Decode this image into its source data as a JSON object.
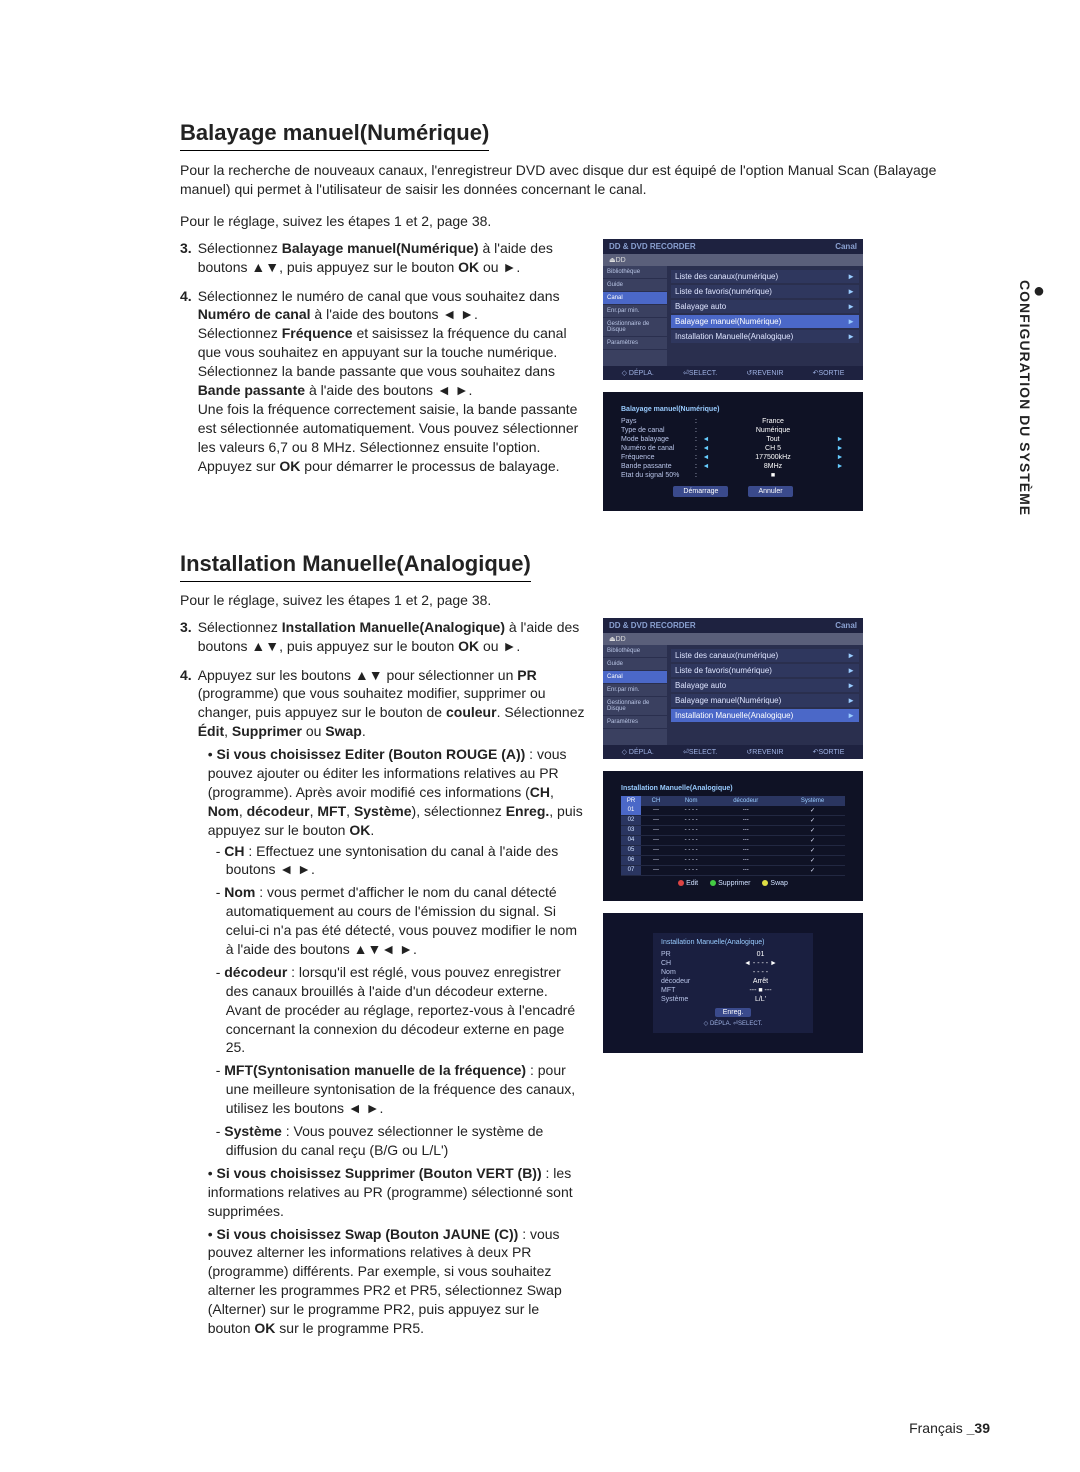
{
  "side_tab": "CONFIGURATION DU SYSTÈME",
  "section1": {
    "title": "Balayage manuel(Numérique)",
    "intro": "Pour la recherche de nouveaux canaux, l'enregistreur DVD avec disque dur est équipé de l'option Manual Scan (Balayage manuel) qui permet à l'utilisateur de saisir les données concernant le canal.",
    "step0": "Pour le réglage, suivez les étapes 1 et 2, page 38.",
    "step3": {
      "num": "3.",
      "text_a": "Sélectionnez ",
      "bold_a": "Balayage manuel(Numérique)",
      "text_b": " à l'aide des boutons ▲▼, puis appuyez sur le bouton ",
      "bold_b": "OK",
      "text_c": " ou ►."
    },
    "step4": {
      "num": "4.",
      "l1": "Sélectionnez le numéro de canal que vous souhaitez dans ",
      "l1b": "Numéro de canal",
      "l1c": " à l'aide des boutons ◄ ►.",
      "l2a": "Sélectionnez ",
      "l2b": "Fréquence",
      "l2c": " et saisissez la fréquence du canal que vous souhaitez en appuyant sur la touche numérique.",
      "l3a": "Sélectionnez la bande passante que vous souhaitez dans ",
      "l3b": "Bande passante",
      "l3c": " à l'aide des boutons ◄ ►.",
      "l4": "Une fois la fréquence correctement saisie, la bande passante est sélectionnée automatiquement. Vous pouvez sélectionner les valeurs 6,7 ou 8 MHz. Sélectionnez ensuite l'option. Appuyez sur ",
      "l4b": "OK",
      "l4c": " pour démarrer le processus de balayage."
    }
  },
  "section2": {
    "title": "Installation Manuelle(Analogique)",
    "step0": "Pour le réglage, suivez les étapes 1 et 2, page 38.",
    "step3": {
      "num": "3.",
      "a": "Sélectionnez ",
      "b": "Installation Manuelle(Analogique)",
      "c": " à l'aide des boutons ▲▼, puis appuyez sur le bouton ",
      "d": "OK",
      "e": " ou ►."
    },
    "step4": {
      "num": "4.",
      "p1a": "Appuyez sur les boutons ▲▼ pour sélectionner un ",
      "p1b": "PR",
      "p1c": " (programme) que vous souhaitez modifier, supprimer ou changer, puis appuyez sur le bouton de ",
      "p1d": "couleur",
      "p1e": ". Sélectionnez ",
      "p1f": "Édit",
      "p1g": ", ",
      "p1h": "Supprimer",
      "p1i": " ou ",
      "p1j": "Swap",
      "p1k": ".",
      "bul1a": "Si vous choisissez Editer (Bouton ROUGE (A))",
      "bul1b": " : vous pouvez ajouter ou éditer les informations relatives au PR (programme). Après avoir modifié ces informations (",
      "bul1c": "CH",
      "bul1d": ", ",
      "bul1e": "Nom",
      "bul1f": ", ",
      "bul1g": "décodeur",
      "bul1h": ", ",
      "bul1i": "MFT",
      "bul1j": ", ",
      "bul1k": "Système",
      "bul1l": "), sélectionnez ",
      "bul1m": "Enreg.",
      "bul1n": ", puis appuyez sur le bouton ",
      "bul1o": "OK",
      "bul1p": ".",
      "d_ch_a": "CH",
      "d_ch_b": " : Effectuez une syntonisation du canal à l'aide des boutons ◄ ►.",
      "d_nom_a": "Nom",
      "d_nom_b": " : vous permet d'afficher le nom du canal détecté automatiquement au cours de l'émission du signal. Si celui-ci n'a pas été détecté, vous pouvez modifier le nom à l'aide des boutons ▲▼◄ ►.",
      "d_dec_a": "décodeur",
      "d_dec_b": " : lorsqu'il est réglé, vous pouvez enregistrer des canaux brouillés à l'aide d'un décodeur externe. Avant de procéder au réglage, reportez-vous à l'encadré concernant la connexion du décodeur externe en page 25.",
      "d_mft_a": "MFT(Syntonisation manuelle de la fréquence)",
      "d_mft_b": " : pour une meilleure syntonisation de la fréquence des canaux, utilisez les boutons ◄ ►.",
      "d_sys_a": "Système",
      "d_sys_b": " : Vous pouvez sélectionner le système de diffusion du canal reçu (B/G ou L/L')",
      "bul2a": "Si vous choisissez Supprimer (Bouton VERT (B))",
      "bul2b": " : les informations relatives au PR (programme) sélectionné sont supprimées.",
      "bul3a": "Si vous choisissez Swap (Bouton JAUNE (C))",
      "bul3b": " : vous pouvez alterner les informations relatives à deux PR (programme) différents. Par exemple, si vous souhaitez alterner les programmes PR2 et PR5, sélectionnez Swap (Alterner) sur le programme PR2, puis appuyez sur le bouton ",
      "bul3c": "OK",
      "bul3d": " sur le programme PR5."
    }
  },
  "scrA": {
    "head_l": "DD & DVD RECORDER",
    "head_r": "Canal",
    "dd": "⏏DD",
    "side": [
      "Bibliothèque",
      "Guide",
      "Canal",
      "Enr.par min.",
      "Gestionnaire de Disque",
      "Paramètres"
    ],
    "side_hl_index": 2,
    "items": [
      "Liste des canaux(numérique)",
      "Liste de favoris(numérique)",
      "Balayage auto",
      "Balayage manuel(Numérique)",
      "Installation Manuelle(Analogique)"
    ],
    "items_hl_index": 3,
    "foot": [
      "◇ DÉPLA.",
      "⏎SELECT.",
      "↺REVENIR",
      "↶SORTIE"
    ]
  },
  "scrB": {
    "title": "Balayage manuel(Numérique)",
    "rows": [
      {
        "l": "Pays",
        "v": "France",
        "arrows": false
      },
      {
        "l": "Type de canal",
        "v": "Numérique",
        "arrows": false
      },
      {
        "l": "Mode balayage",
        "v": "Tout",
        "arrows": true
      },
      {
        "l": "Numéro de canal",
        "v": "CH 5",
        "arrows": true
      },
      {
        "l": "Fréquence",
        "v": "177500kHz",
        "arrows": true
      },
      {
        "l": "Bande passante",
        "v": "8MHz",
        "arrows": true
      },
      {
        "l": "Etat du signal  50%",
        "v": "■",
        "arrows": false
      }
    ],
    "btn1": "Démarrage",
    "btn2": "Annuler"
  },
  "scrC": {
    "head_l": "DD & DVD RECORDER",
    "head_r": "Canal",
    "dd": "⏏DD",
    "side": [
      "Bibliothèque",
      "Guide",
      "Canal",
      "Enr.par min.",
      "Gestionnaire de Disque",
      "Paramètres"
    ],
    "side_hl_index": 2,
    "items": [
      "Liste des canaux(numérique)",
      "Liste de favoris(numérique)",
      "Balayage auto",
      "Balayage manuel(Numérique)",
      "Installation Manuelle(Analogique)"
    ],
    "items_hl_index": 4,
    "foot": [
      "◇ DÉPLA.",
      "⏎SELECT.",
      "↺REVENIR",
      "↶SORTIE"
    ]
  },
  "scrD": {
    "title": "Installation Manuelle(Analogique)",
    "cols": [
      "PR",
      "CH",
      "Nom",
      "décodeur",
      "Système"
    ],
    "rows": [
      [
        "01",
        "---",
        "- - - -",
        "---",
        "✓"
      ],
      [
        "02",
        "---",
        "- - - -",
        "---",
        "✓"
      ],
      [
        "03",
        "---",
        "- - - -",
        "---",
        "✓"
      ],
      [
        "04",
        "---",
        "- - - -",
        "---",
        "✓"
      ],
      [
        "05",
        "---",
        "- - - -",
        "---",
        "✓"
      ],
      [
        "06",
        "---",
        "- - - -",
        "---",
        "✓"
      ],
      [
        "07",
        "---",
        "- - - -",
        "---",
        "✓"
      ]
    ],
    "foot_edit": "Edit",
    "foot_supp": "Supprimer",
    "foot_swap": "Swap"
  },
  "scrE": {
    "title": "Installation Manuelle(Analogique)",
    "rows": [
      {
        "l": "PR",
        "v": "01"
      },
      {
        "l": "CH",
        "v": "◄ - - - - ►"
      },
      {
        "l": "Nom",
        "v": "- - - -"
      },
      {
        "l": "décodeur",
        "v": "Arrêt"
      },
      {
        "l": "MFT",
        "v": "--- ■ ---"
      },
      {
        "l": "Système",
        "v": "L/L'"
      }
    ],
    "btn": "Enreg.",
    "foot": "◇ DÉPLA.    ⏎SELECT."
  },
  "footer": {
    "lang": "Français ",
    "page": "_39"
  }
}
